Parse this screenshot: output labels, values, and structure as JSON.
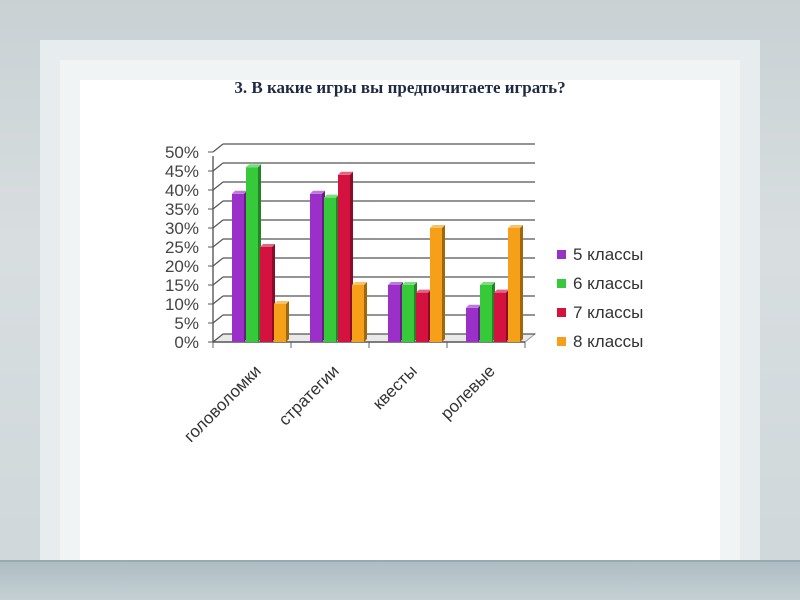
{
  "slide": {
    "title": "3. В какие игры вы предпочитаете играть?"
  },
  "chart_data": {
    "type": "bar",
    "title": "3. В какие игры вы предпочитаете играть?",
    "xlabel": "",
    "ylabel": "",
    "categories": [
      "головоломки",
      "стратегии",
      "квесты",
      "ролевые"
    ],
    "series": [
      {
        "name": "5 классы",
        "color": "#9b30c8",
        "values": [
          0.39,
          0.39,
          0.15,
          0.09
        ]
      },
      {
        "name": "6 классы",
        "color": "#36c93a",
        "values": [
          0.46,
          0.38,
          0.15,
          0.15
        ]
      },
      {
        "name": "7 классы",
        "color": "#d3123f",
        "values": [
          0.25,
          0.44,
          0.13,
          0.13
        ]
      },
      {
        "name": "8 классы",
        "color": "#f5a018",
        "values": [
          0.1,
          0.15,
          0.3,
          0.3
        ]
      }
    ],
    "ylim": [
      0,
      0.5
    ],
    "yticks": [
      "0%",
      "5%",
      "10%",
      "15%",
      "20%",
      "25%",
      "30%",
      "35%",
      "40%",
      "45%",
      "50%"
    ],
    "grid": true,
    "legend": "right"
  }
}
